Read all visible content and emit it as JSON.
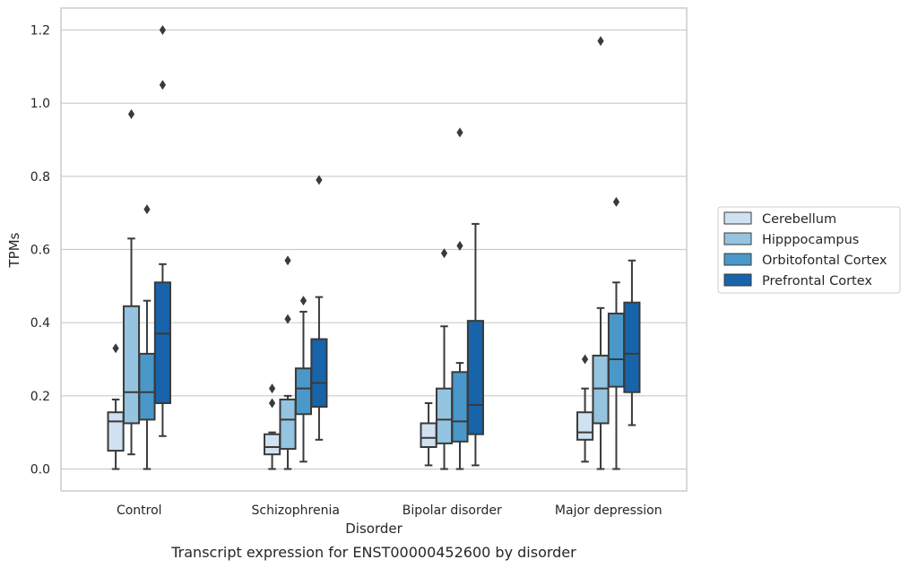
{
  "chart_data": {
    "type": "boxplot",
    "caption": "Transcript expression for ENST00000452600 by disorder",
    "xlabel": "Disorder",
    "ylabel": "TPMs",
    "ylim": [
      -0.06,
      1.26
    ],
    "yticks": [
      "0.0",
      "0.2",
      "0.4",
      "0.6",
      "0.8",
      "1.0",
      "1.2"
    ],
    "grid": true,
    "legend_position": "right",
    "categories": [
      "Control",
      "Schizophrenia",
      "Bipolar disorder",
      "Major depression"
    ],
    "series": [
      {
        "name": "Cerebellum",
        "color": "#d0e1f2",
        "boxes": [
          {
            "whislo": 0.0,
            "q1": 0.05,
            "med": 0.13,
            "q3": 0.155,
            "whishi": 0.19,
            "fliers": [
              0.33
            ]
          },
          {
            "whislo": 0.0,
            "q1": 0.04,
            "med": 0.06,
            "q3": 0.095,
            "whishi": 0.1,
            "fliers": [
              0.18,
              0.22
            ]
          },
          {
            "whislo": 0.01,
            "q1": 0.06,
            "med": 0.085,
            "q3": 0.125,
            "whishi": 0.18,
            "fliers": []
          },
          {
            "whislo": 0.02,
            "q1": 0.08,
            "med": 0.1,
            "q3": 0.155,
            "whishi": 0.22,
            "fliers": [
              0.3
            ]
          }
        ]
      },
      {
        "name": "Hipppocampus",
        "color": "#94c4df",
        "boxes": [
          {
            "whislo": 0.04,
            "q1": 0.125,
            "med": 0.21,
            "q3": 0.445,
            "whishi": 0.63,
            "fliers": [
              0.97
            ]
          },
          {
            "whislo": 0.0,
            "q1": 0.055,
            "med": 0.135,
            "q3": 0.19,
            "whishi": 0.2,
            "fliers": [
              0.41,
              0.57
            ]
          },
          {
            "whislo": 0.0,
            "q1": 0.07,
            "med": 0.135,
            "q3": 0.22,
            "whishi": 0.39,
            "fliers": [
              0.59
            ]
          },
          {
            "whislo": 0.0,
            "q1": 0.125,
            "med": 0.22,
            "q3": 0.31,
            "whishi": 0.44,
            "fliers": [
              1.17
            ]
          }
        ]
      },
      {
        "name": "Orbitofontal Cortex",
        "color": "#4a98c9",
        "boxes": [
          {
            "whislo": 0.0,
            "q1": 0.135,
            "med": 0.21,
            "q3": 0.315,
            "whishi": 0.46,
            "fliers": [
              0.71
            ]
          },
          {
            "whislo": 0.02,
            "q1": 0.15,
            "med": 0.22,
            "q3": 0.275,
            "whishi": 0.43,
            "fliers": [
              0.46
            ]
          },
          {
            "whislo": 0.0,
            "q1": 0.075,
            "med": 0.13,
            "q3": 0.265,
            "whishi": 0.29,
            "fliers": [
              0.61,
              0.92
            ]
          },
          {
            "whislo": 0.0,
            "q1": 0.225,
            "med": 0.3,
            "q3": 0.425,
            "whishi": 0.51,
            "fliers": [
              0.73
            ]
          }
        ]
      },
      {
        "name": "Prefrontal Cortex",
        "color": "#1764ab",
        "boxes": [
          {
            "whislo": 0.09,
            "q1": 0.18,
            "med": 0.37,
            "q3": 0.51,
            "whishi": 0.56,
            "fliers": [
              1.05,
              1.2
            ]
          },
          {
            "whislo": 0.08,
            "q1": 0.17,
            "med": 0.235,
            "q3": 0.355,
            "whishi": 0.47,
            "fliers": [
              0.79
            ]
          },
          {
            "whislo": 0.01,
            "q1": 0.095,
            "med": 0.175,
            "q3": 0.405,
            "whishi": 0.67,
            "fliers": []
          },
          {
            "whislo": 0.12,
            "q1": 0.21,
            "med": 0.315,
            "q3": 0.455,
            "whishi": 0.57,
            "fliers": []
          }
        ]
      }
    ]
  }
}
